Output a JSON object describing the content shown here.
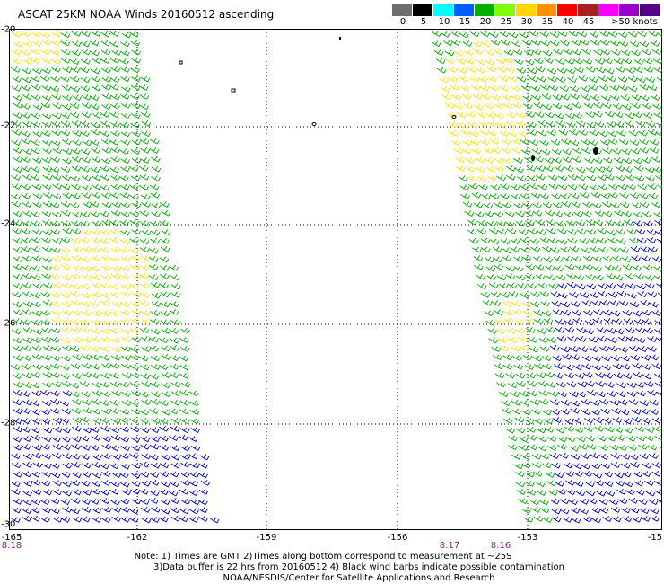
{
  "title": "ASCAT 25KM NOAA Winds 20160512 ascending",
  "scale": {
    "colors": [
      "#6e6e6e",
      "#000000",
      "#00ffff",
      "#0060ff",
      "#00b000",
      "#80ff00",
      "#ffd700",
      "#ff9000",
      "#ff0000",
      "#aa2020",
      "#ff00ff",
      "#9900cc",
      "#550088"
    ],
    "labels": [
      "0",
      "5",
      "10",
      "15",
      "20",
      "25",
      "30",
      "35",
      "40",
      "45",
      ">50 knots"
    ]
  },
  "y_axis_labels": [
    "-20",
    "-22",
    "-24",
    "-26",
    "-28",
    "-30"
  ],
  "x_axis_labels": [
    "-165",
    "-162",
    "-159",
    "-156",
    "-153",
    "-15"
  ],
  "time_labels": [
    "8:18",
    "8:17",
    "8:16"
  ],
  "notes": [
    "Note: 1) Times are GMT 2)Times along bottom correspond to measurement at ~25S",
    "3)Data buffer is 22 hrs from 20160512 4) Black wind barbs indicate possible contamination",
    "NOAA/NESDIS/Center for Satellite Applications and Research"
  ],
  "legend_colors": {
    "calm": "#000000",
    "10-15": "#0000cc",
    "15-20": "#00aa00",
    "20-25": "#ffe000"
  }
}
